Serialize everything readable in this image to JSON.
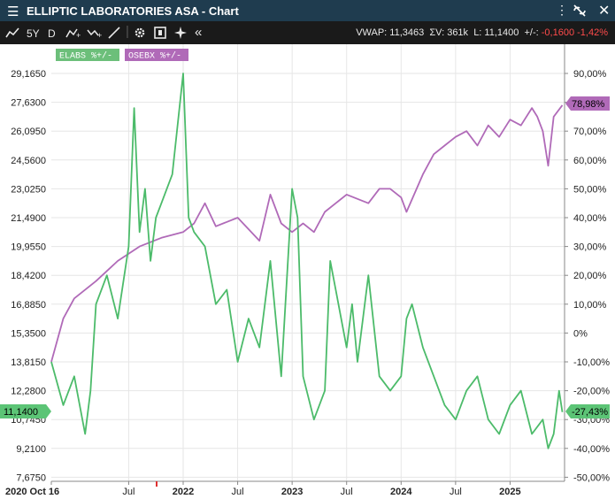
{
  "titlebar": {
    "title": "ELLIPTIC LABORATORIES ASA - Chart",
    "menu_icon": "hamburger-icon",
    "more_icon": "vertical-dots-icon",
    "unlink_icon": "unlink-icon",
    "close_icon": "close-icon"
  },
  "toolbar": {
    "period": "5Y",
    "interval": "D",
    "vwap": "VWAP: 11,3463",
    "volume": "ΣV: 361k",
    "last": "L: 11,1400",
    "change_label": "+/-:",
    "change": "-0,1600",
    "change_pct": "-1,42%"
  },
  "legend": [
    {
      "label": "ELABS %+/-",
      "color": "#6cbf7a"
    },
    {
      "label": "OSEBX %+/-",
      "color": "#b06ab8"
    }
  ],
  "current": {
    "left_price": "11,1400",
    "right_elabs": "-27,43%",
    "right_osebx": "78,98%"
  },
  "chart_data": {
    "type": "line",
    "title": "",
    "left_axis_ticks": [
      "29,1650",
      "27,6300",
      "26,0950",
      "24,5600",
      "23,0250",
      "21,4900",
      "19,9550",
      "18,4200",
      "16,8850",
      "15,3500",
      "13,8150",
      "12,2800",
      "10,7450",
      "9,2100",
      "7,6750"
    ],
    "right_axis_ticks": [
      "90,00%",
      "80,00%",
      "70,00%",
      "60,00%",
      "50,00%",
      "40,00%",
      "30,00%",
      "20,00%",
      "10,00%",
      "0%",
      "-10,00%",
      "-20,00%",
      "-30,00%",
      "-40,00%",
      "-50,00%"
    ],
    "x_tick_labels": [
      "2020 Oct 16",
      "Jul",
      "2022",
      "Jul",
      "2023",
      "Jul",
      "2024",
      "Jul",
      "2025"
    ],
    "x_tick_positions": [
      2020.79,
      2021.5,
      2022.0,
      2022.5,
      2023.0,
      2023.5,
      2024.0,
      2024.5,
      2025.0
    ],
    "x_range": [
      2020.79,
      2025.5
    ],
    "y_range_pct": [
      -50,
      95
    ],
    "colors": {
      "elabs": "#4cbb6a",
      "osebx": "#b06ab8"
    },
    "series": [
      {
        "name": "ELABS %+/-",
        "x": [
          2020.79,
          2020.9,
          2021.0,
          2021.1,
          2021.15,
          2021.2,
          2021.3,
          2021.4,
          2021.5,
          2021.55,
          2021.6,
          2021.65,
          2021.7,
          2021.75,
          2021.8,
          2021.9,
          2022.0,
          2022.05,
          2022.1,
          2022.2,
          2022.3,
          2022.4,
          2022.5,
          2022.6,
          2022.7,
          2022.8,
          2022.9,
          2023.0,
          2023.05,
          2023.1,
          2023.2,
          2023.3,
          2023.35,
          2023.4,
          2023.5,
          2023.55,
          2023.6,
          2023.7,
          2023.8,
          2023.9,
          2024.0,
          2024.05,
          2024.1,
          2024.2,
          2024.3,
          2024.4,
          2024.5,
          2024.6,
          2024.7,
          2024.8,
          2024.9,
          2025.0,
          2025.1,
          2025.2,
          2025.3,
          2025.35,
          2025.4,
          2025.45,
          2025.48
        ],
        "y": [
          -10,
          -25,
          -15,
          -35,
          -20,
          10,
          20,
          5,
          30,
          78,
          35,
          50,
          25,
          40,
          45,
          55,
          90,
          40,
          35,
          30,
          10,
          15,
          -10,
          5,
          -5,
          25,
          -15,
          50,
          40,
          -15,
          -30,
          -20,
          25,
          15,
          -5,
          10,
          -10,
          20,
          -15,
          -20,
          -15,
          5,
          10,
          -5,
          -15,
          -25,
          -30,
          -20,
          -15,
          -30,
          -35,
          -25,
          -20,
          -35,
          -30,
          -40,
          -35,
          -20,
          -27.43
        ]
      },
      {
        "name": "OSEBX %+/-",
        "x": [
          2020.79,
          2020.9,
          2021.0,
          2021.2,
          2021.4,
          2021.6,
          2021.8,
          2022.0,
          2022.1,
          2022.2,
          2022.3,
          2022.5,
          2022.7,
          2022.8,
          2022.9,
          2023.0,
          2023.1,
          2023.2,
          2023.3,
          2023.5,
          2023.7,
          2023.8,
          2023.9,
          2024.0,
          2024.05,
          2024.2,
          2024.3,
          2024.4,
          2024.5,
          2024.6,
          2024.7,
          2024.8,
          2024.9,
          2025.0,
          2025.1,
          2025.2,
          2025.25,
          2025.3,
          2025.35,
          2025.4,
          2025.48
        ],
        "y": [
          -10,
          5,
          12,
          18,
          25,
          30,
          33,
          35,
          38,
          45,
          37,
          40,
          32,
          48,
          38,
          35,
          38,
          35,
          42,
          48,
          45,
          50,
          50,
          47,
          42,
          55,
          62,
          65,
          68,
          70,
          65,
          72,
          68,
          74,
          72,
          78,
          75,
          70,
          58,
          75,
          78.98
        ]
      }
    ]
  }
}
